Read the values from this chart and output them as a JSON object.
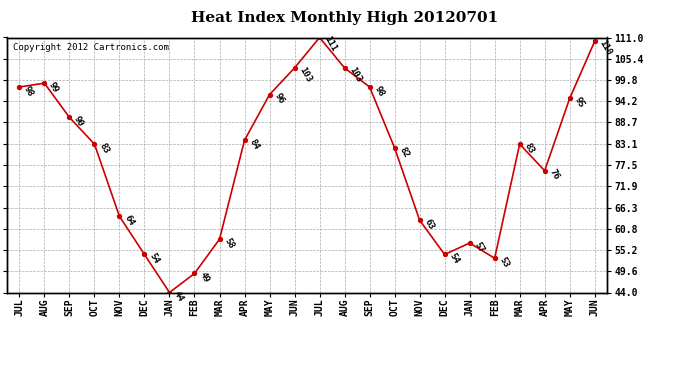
{
  "title": "Heat Index Monthly High 20120701",
  "copyright": "Copyright 2012 Cartronics.com",
  "months": [
    "JUL",
    "AUG",
    "SEP",
    "OCT",
    "NOV",
    "DEC",
    "JAN",
    "FEB",
    "MAR",
    "APR",
    "MAY",
    "JUN",
    "JUL",
    "AUG",
    "SEP",
    "OCT",
    "NOV",
    "DEC",
    "JAN",
    "FEB",
    "MAR",
    "APR",
    "MAY",
    "JUN"
  ],
  "values": [
    98,
    99,
    90,
    83,
    64,
    54,
    44,
    49,
    58,
    84,
    96,
    103,
    111,
    103,
    98,
    82,
    63,
    54,
    57,
    53,
    83,
    76,
    95,
    110
  ],
  "line_color": "#cc0000",
  "marker": "o",
  "marker_color": "#cc0000",
  "background_color": "#ffffff",
  "plot_bg_color": "#ffffff",
  "grid_color": "#aaaaaa",
  "ylim": [
    44.0,
    111.0
  ],
  "yticks": [
    44.0,
    49.6,
    55.2,
    60.8,
    66.3,
    71.9,
    77.5,
    83.1,
    88.7,
    94.2,
    99.8,
    105.4,
    111.0
  ],
  "title_fontsize": 11,
  "label_fontsize": 6.5,
  "tick_fontsize": 7,
  "copyright_fontsize": 6.5
}
